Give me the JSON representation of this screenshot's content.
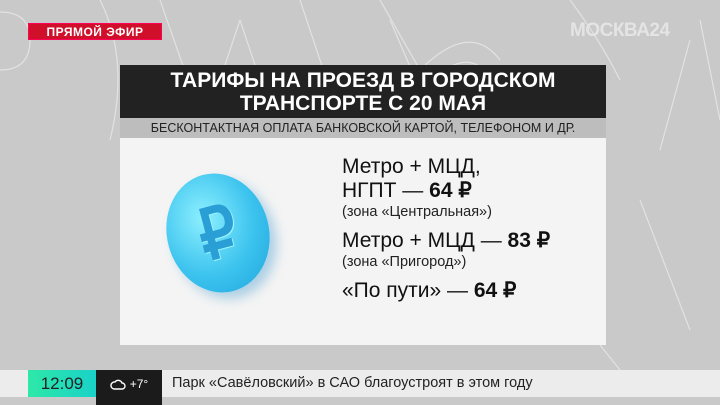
{
  "badge": {
    "live": "ПРЯМОЙ ЭФИР"
  },
  "channel": {
    "logo": "МОСКВА24"
  },
  "panel": {
    "title_line1": "ТАРИФЫ НА ПРОЕЗД В ГОРОДСКОМ",
    "title_line2": "ТРАНСПОРТЕ С 20 МАЯ",
    "subtitle": "БЕСКОНТАКТНАЯ ОПЛАТА БАНКОВСКОЙ КАРТОЙ, ТЕЛЕФОНОМ И ДР.",
    "coin_symbol": "₽",
    "fares": [
      {
        "line1": "Метро + МЦД,",
        "line2_label": "НГПТ — ",
        "price": "64 ₽",
        "note": "(зона «Центральная»)"
      },
      {
        "label": "Метро + МЦД — ",
        "price": "83 ₽",
        "note": "(зона «Пригород»)"
      },
      {
        "label": "«По пути» — ",
        "price": "64 ₽"
      }
    ]
  },
  "ticker": {
    "time": "12:09",
    "weather_icon": "cloud-icon",
    "temperature": "+7°",
    "headline": "Парк «Савёловский» в САО благоустроят в этом году"
  },
  "colors": {
    "live_red": "#d0102a",
    "time_green": "#2ee8a8",
    "coin_blue": "#3cc3ee"
  }
}
